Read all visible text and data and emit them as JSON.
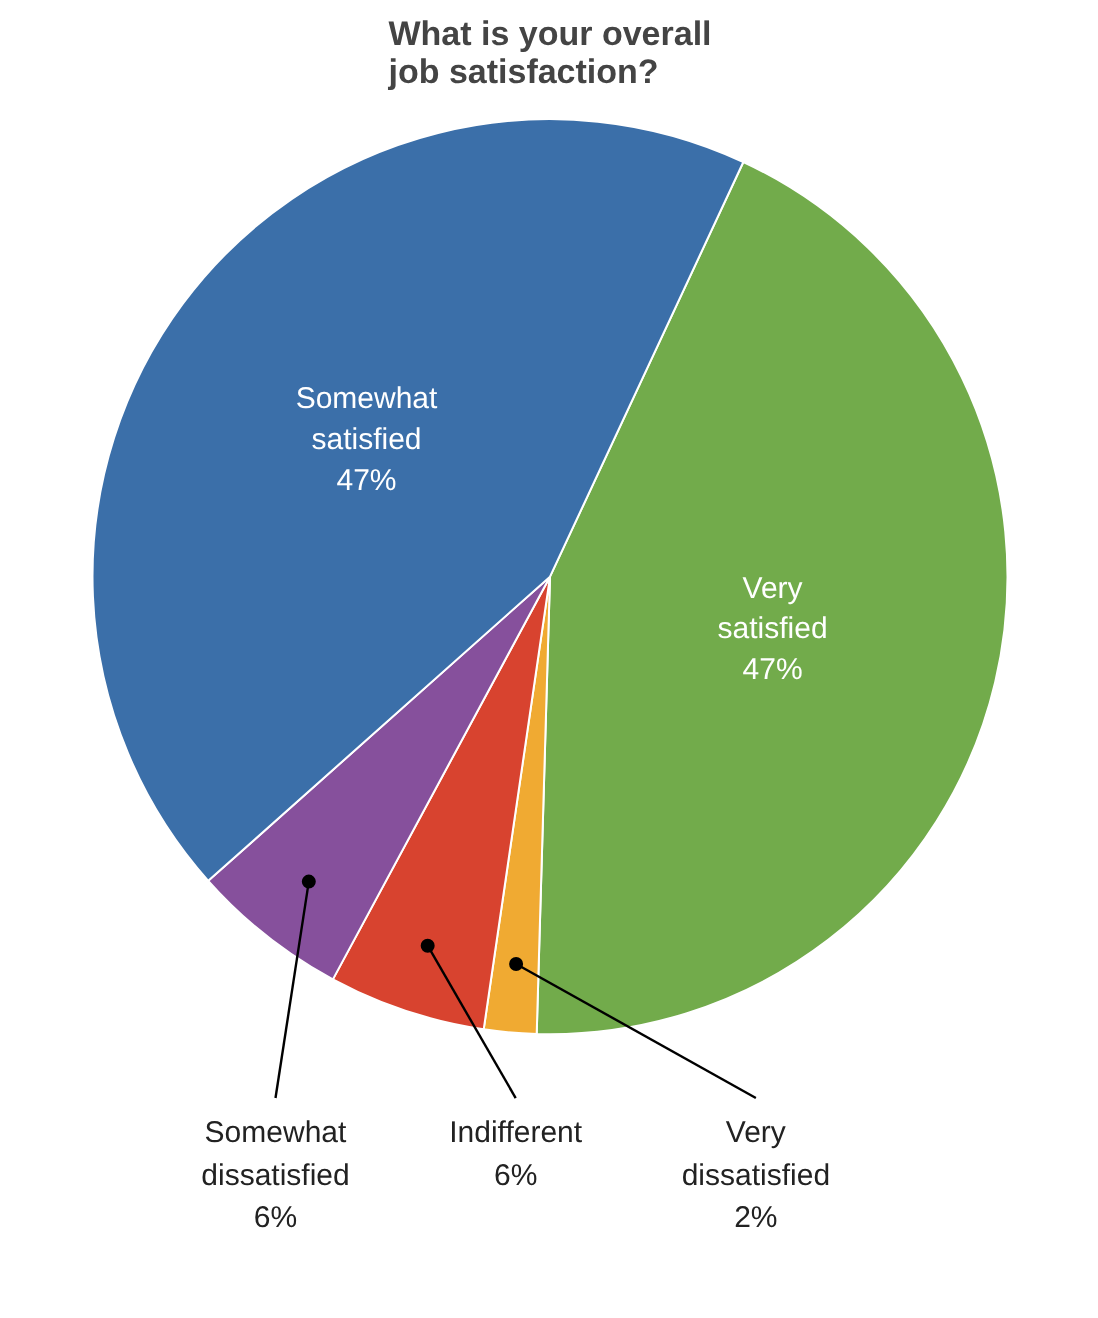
{
  "chart_data": {
    "type": "pie",
    "title": "What is your overall job satisfaction?",
    "categories": [
      "Very satisfied",
      "Very dissatisfied",
      "Indifferent",
      "Somewhat dissatisfied",
      "Somewhat satisfied"
    ],
    "values": [
      47,
      2,
      6,
      6,
      47
    ],
    "value_labels": [
      "47%",
      "2%",
      "6%",
      "6%",
      "47%"
    ],
    "colors": [
      "#72ab4b",
      "#f0aa32",
      "#d8432f",
      "#86509c",
      "#3b6fa9"
    ]
  }
}
